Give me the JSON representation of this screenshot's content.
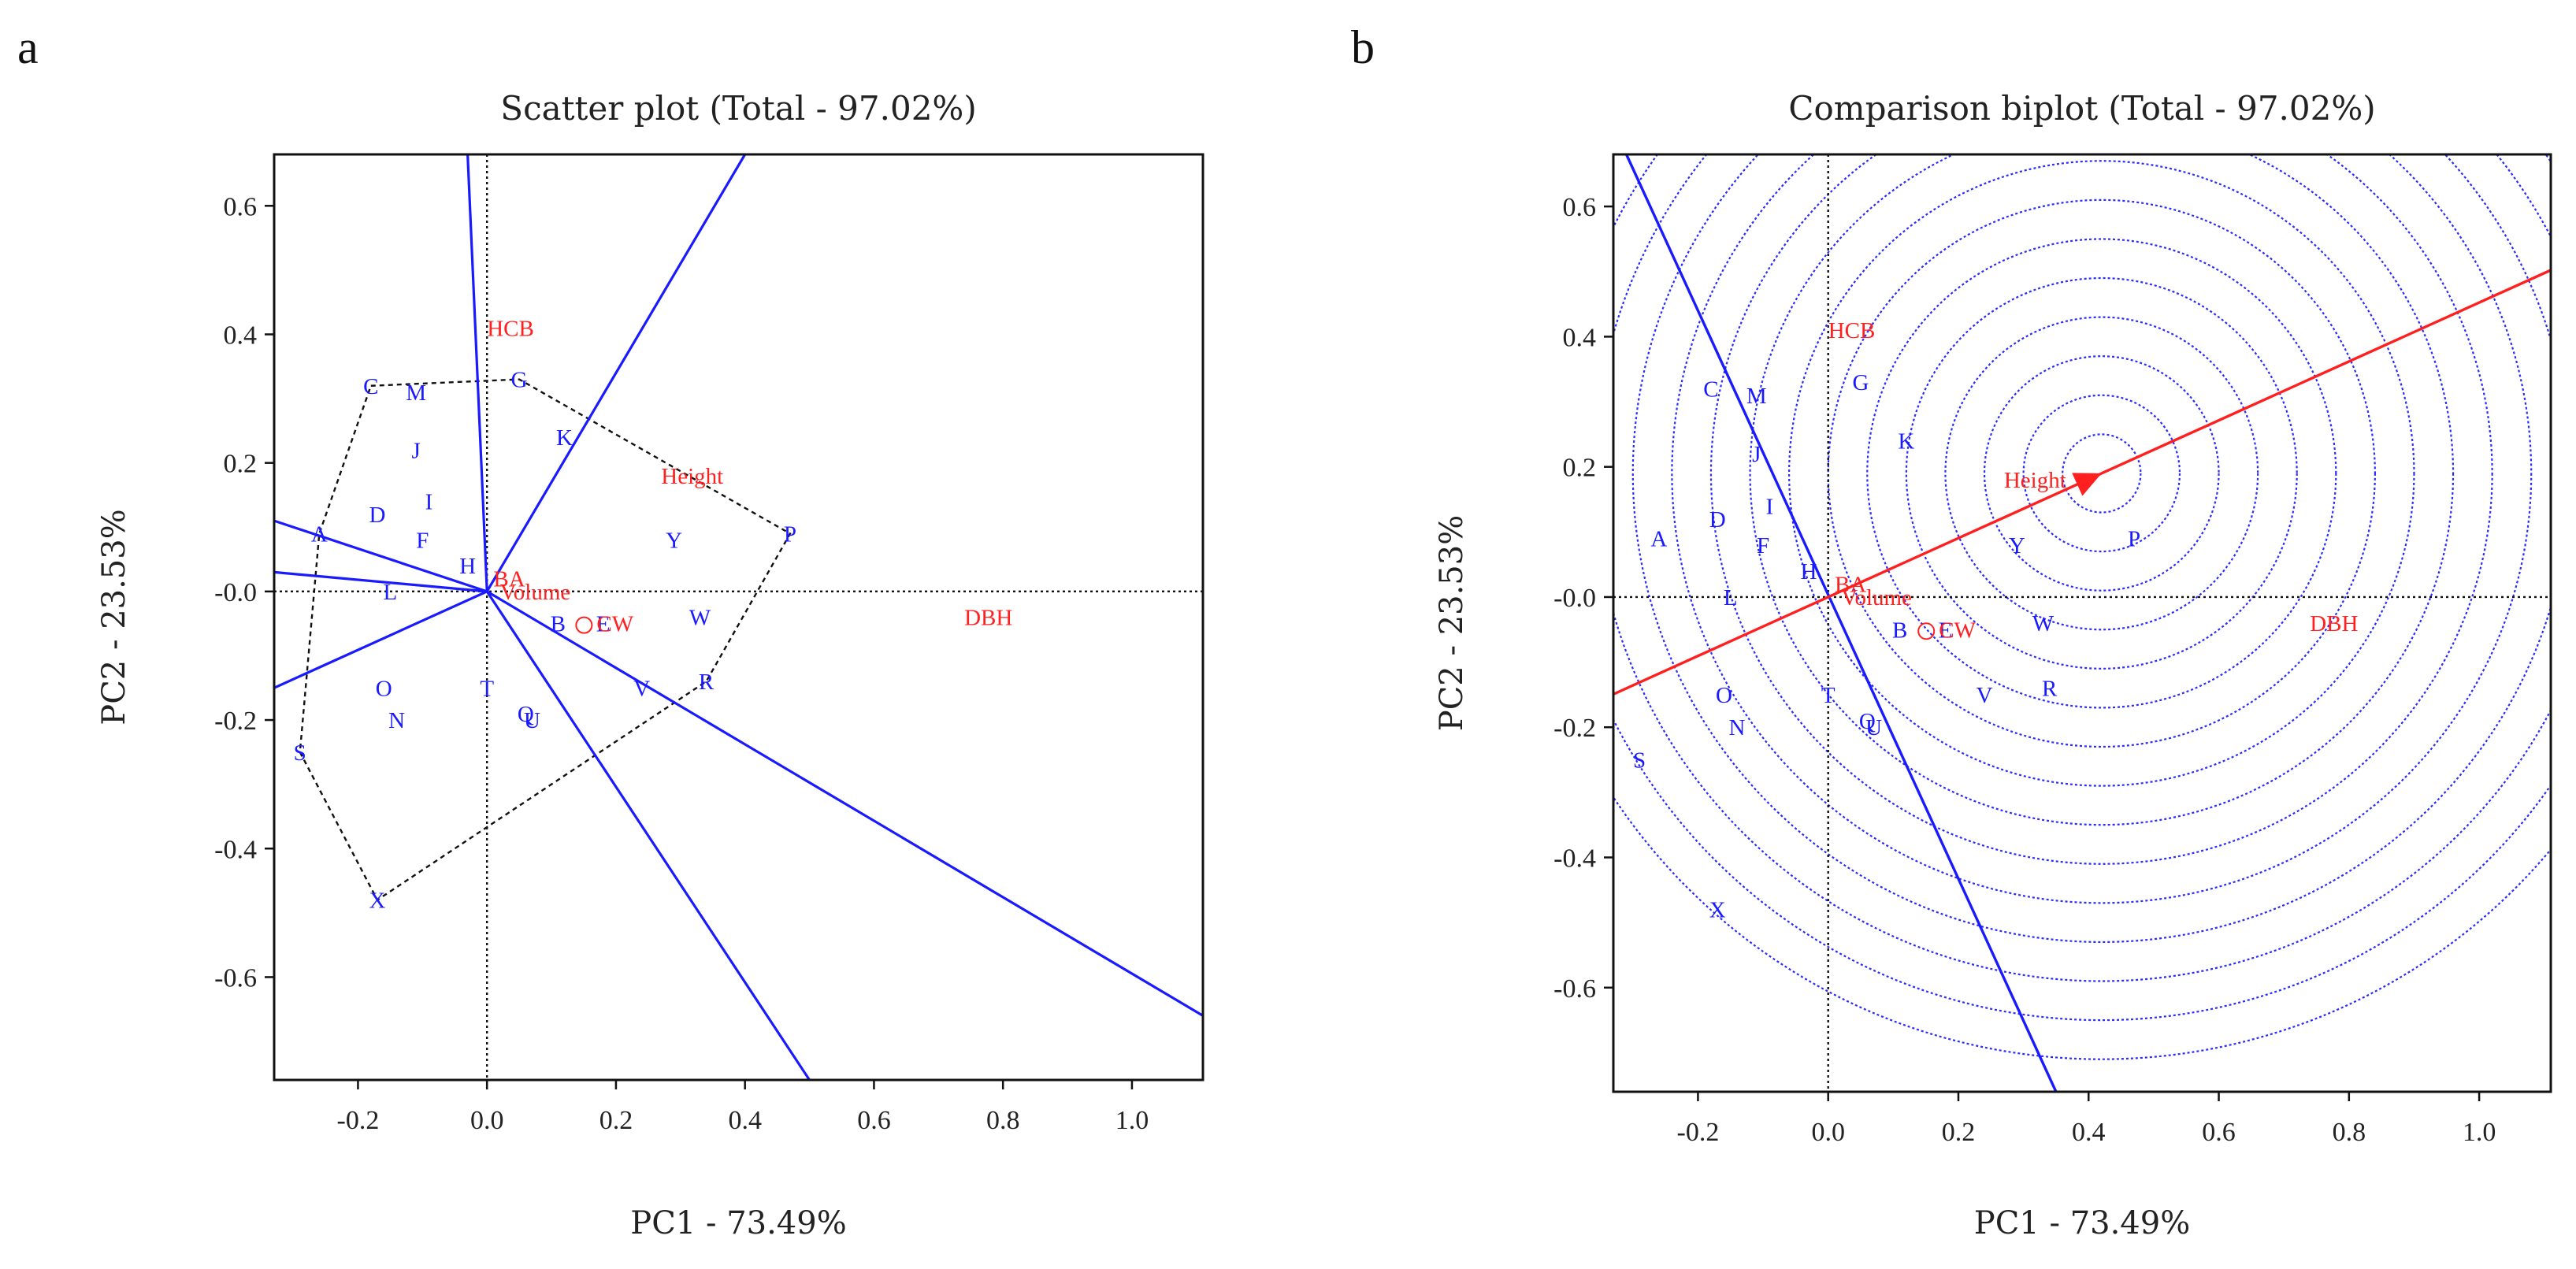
{
  "figure": {
    "panel_labels": [
      "a",
      "b"
    ]
  },
  "chart_data": [
    {
      "type": "scatter",
      "panel": "a",
      "title": "Scatter plot (Total - 97.02%)",
      "xlabel": "PC1 - 73.49%",
      "ylabel": "PC2 - 23.53%",
      "xlim": [
        -0.33,
        1.11
      ],
      "ylim": [
        -0.76,
        0.68
      ],
      "xticks": [
        -0.2,
        0.0,
        0.2,
        0.4,
        0.6,
        0.8,
        1.0
      ],
      "yticks": [
        0.6,
        0.4,
        0.2,
        0.0,
        -0.2,
        -0.4,
        -0.6
      ],
      "xtick_labels": [
        "-0.2",
        "0.0",
        "0.2",
        "0.4",
        "0.6",
        "0.8",
        "1.0"
      ],
      "ytick_labels": [
        "0.6",
        "0.4",
        "0.2",
        "-0.0",
        "-0.2",
        "-0.4",
        "-0.6"
      ],
      "genotypes": [
        {
          "label": "A",
          "x": -0.26,
          "y": 0.09
        },
        {
          "label": "B",
          "x": 0.11,
          "y": -0.05
        },
        {
          "label": "C",
          "x": -0.18,
          "y": 0.32
        },
        {
          "label": "D",
          "x": -0.17,
          "y": 0.12
        },
        {
          "label": "E",
          "x": 0.18,
          "y": -0.05
        },
        {
          "label": "F",
          "x": -0.1,
          "y": 0.08
        },
        {
          "label": "G",
          "x": 0.05,
          "y": 0.33
        },
        {
          "label": "H",
          "x": -0.03,
          "y": 0.04
        },
        {
          "label": "I",
          "x": -0.09,
          "y": 0.14
        },
        {
          "label": "J",
          "x": -0.11,
          "y": 0.22
        },
        {
          "label": "K",
          "x": 0.12,
          "y": 0.24
        },
        {
          "label": "L",
          "x": -0.15,
          "y": 0.0
        },
        {
          "label": "M",
          "x": -0.11,
          "y": 0.31
        },
        {
          "label": "N",
          "x": -0.14,
          "y": -0.2
        },
        {
          "label": "O",
          "x": -0.16,
          "y": -0.15
        },
        {
          "label": "P",
          "x": 0.47,
          "y": 0.09
        },
        {
          "label": "Q",
          "x": 0.06,
          "y": -0.19
        },
        {
          "label": "R",
          "x": 0.34,
          "y": -0.14
        },
        {
          "label": "S",
          "x": -0.29,
          "y": -0.25
        },
        {
          "label": "T",
          "x": 0.0,
          "y": -0.15
        },
        {
          "label": "U",
          "x": 0.07,
          "y": -0.2
        },
        {
          "label": "V",
          "x": 0.24,
          "y": -0.15
        },
        {
          "label": "W",
          "x": 0.33,
          "y": -0.04
        },
        {
          "label": "X",
          "x": -0.17,
          "y": -0.48
        },
        {
          "label": "Y",
          "x": 0.29,
          "y": 0.08
        }
      ],
      "environments": [
        {
          "label": "HCB",
          "x": 0.0,
          "y": 0.41
        },
        {
          "label": "Height",
          "x": 0.27,
          "y": 0.18
        },
        {
          "label": "DBH",
          "x": 0.74,
          "y": -0.04
        },
        {
          "label": "Volume",
          "x": 0.02,
          "y": -0.0
        },
        {
          "label": "CW",
          "x": 0.17,
          "y": -0.05
        },
        {
          "label": "BA",
          "x": 0.01,
          "y": 0.02
        }
      ],
      "hull": [
        "C",
        "G",
        "P",
        "R",
        "X",
        "S",
        "A"
      ],
      "sector_rays": [
        {
          "x": -0.03,
          "y": 0.68
        },
        {
          "x": 0.4,
          "y": 0.68
        },
        {
          "x": 1.11,
          "y": -0.66
        },
        {
          "x": 0.5,
          "y": -0.76
        },
        {
          "x": -0.33,
          "y": -0.15
        },
        {
          "x": -0.33,
          "y": 0.03
        },
        {
          "x": -0.33,
          "y": 0.11
        }
      ]
    },
    {
      "type": "scatter",
      "panel": "b",
      "title": "Comparison biplot (Total - 97.02%)",
      "xlabel": "PC1 - 73.49%",
      "ylabel": "PC2 - 23.53%",
      "xlim": [
        -0.33,
        1.11
      ],
      "ylim": [
        -0.76,
        0.68
      ],
      "xticks": [
        -0.2,
        0.0,
        0.2,
        0.4,
        0.6,
        0.8,
        1.0
      ],
      "yticks": [
        0.6,
        0.4,
        0.2,
        0.0,
        -0.2,
        -0.4,
        -0.6
      ],
      "xtick_labels": [
        "-0.2",
        "0.0",
        "0.2",
        "0.4",
        "0.6",
        "0.8",
        "1.0"
      ],
      "ytick_labels": [
        "0.6",
        "0.4",
        "0.2",
        "-0.0",
        "-0.2",
        "-0.4",
        "-0.6"
      ],
      "genotypes": [
        {
          "label": "A",
          "x": -0.26,
          "y": 0.09
        },
        {
          "label": "B",
          "x": 0.11,
          "y": -0.05
        },
        {
          "label": "C",
          "x": -0.18,
          "y": 0.32
        },
        {
          "label": "D",
          "x": -0.17,
          "y": 0.12
        },
        {
          "label": "E",
          "x": 0.18,
          "y": -0.05
        },
        {
          "label": "F",
          "x": -0.1,
          "y": 0.08
        },
        {
          "label": "G",
          "x": 0.05,
          "y": 0.33
        },
        {
          "label": "H",
          "x": -0.03,
          "y": 0.04
        },
        {
          "label": "I",
          "x": -0.09,
          "y": 0.14
        },
        {
          "label": "J",
          "x": -0.11,
          "y": 0.22
        },
        {
          "label": "K",
          "x": 0.12,
          "y": 0.24
        },
        {
          "label": "L",
          "x": -0.15,
          "y": 0.0
        },
        {
          "label": "M",
          "x": -0.11,
          "y": 0.31
        },
        {
          "label": "N",
          "x": -0.14,
          "y": -0.2
        },
        {
          "label": "O",
          "x": -0.16,
          "y": -0.15
        },
        {
          "label": "P",
          "x": 0.47,
          "y": 0.09
        },
        {
          "label": "Q",
          "x": 0.06,
          "y": -0.19
        },
        {
          "label": "R",
          "x": 0.34,
          "y": -0.14
        },
        {
          "label": "S",
          "x": -0.29,
          "y": -0.25
        },
        {
          "label": "T",
          "x": 0.0,
          "y": -0.15
        },
        {
          "label": "U",
          "x": 0.07,
          "y": -0.2
        },
        {
          "label": "V",
          "x": 0.24,
          "y": -0.15
        },
        {
          "label": "W",
          "x": 0.33,
          "y": -0.04
        },
        {
          "label": "X",
          "x": -0.17,
          "y": -0.48
        },
        {
          "label": "Y",
          "x": 0.29,
          "y": 0.08
        }
      ],
      "environments": [
        {
          "label": "HCB",
          "x": 0.0,
          "y": 0.41
        },
        {
          "label": "Height",
          "x": 0.27,
          "y": 0.18
        },
        {
          "label": "DBH",
          "x": 0.74,
          "y": -0.04
        },
        {
          "label": "Volume",
          "x": 0.02,
          "y": -0.0
        },
        {
          "label": "CW",
          "x": 0.17,
          "y": -0.05
        },
        {
          "label": "BA",
          "x": 0.01,
          "y": 0.02
        }
      ],
      "ideal_point": {
        "x": 0.42,
        "y": 0.19
      },
      "aec_perpendicular": {
        "from": {
          "x": -0.31,
          "y": 0.68
        },
        "to": {
          "x": 0.35,
          "y": -0.76
        }
      },
      "concentric_radii": [
        0.06,
        0.12,
        0.18,
        0.24,
        0.3,
        0.36,
        0.42,
        0.48,
        0.54,
        0.6,
        0.66,
        0.72,
        0.78,
        0.84,
        0.9
      ]
    }
  ]
}
